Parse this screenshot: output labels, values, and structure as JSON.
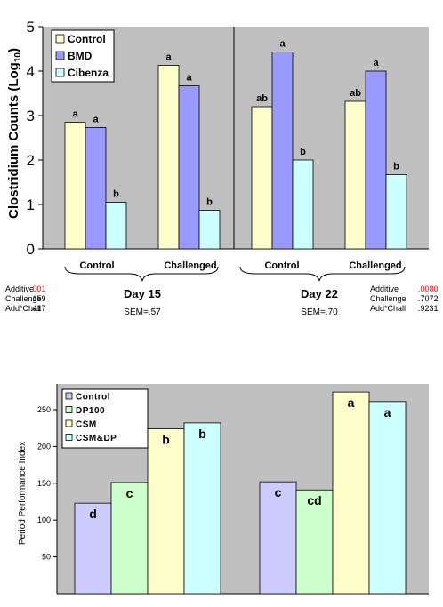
{
  "chart_data": [
    {
      "type": "bar",
      "ylabel": "Clostridium Counts (Log",
      "ylabel_sub": "10",
      "ylabel_close": ")",
      "ylim": [
        0,
        5
      ],
      "yticks": [
        "0",
        "1",
        "2",
        "3",
        "4",
        "5"
      ],
      "grid": false,
      "legend_position": "top-left",
      "categories": [
        "Control",
        "Challenged",
        "Control",
        "Challenged"
      ],
      "groups": [
        {
          "label": "Day 15",
          "sem": "SEM=.57"
        },
        {
          "label": "Day 22",
          "sem": "SEM=.70"
        }
      ],
      "series": [
        {
          "name": "Control",
          "color": "#ffffcc",
          "values": [
            2.85,
            4.13,
            3.2,
            3.32
          ],
          "labels": [
            "a",
            "a",
            "ab",
            "ab"
          ]
        },
        {
          "name": "BMD",
          "color": "#9999ff",
          "values": [
            2.73,
            3.67,
            4.43,
            4.0
          ],
          "labels": [
            "a",
            "a",
            "a",
            "a"
          ]
        },
        {
          "name": "Cibenza",
          "color": "#ccffff",
          "values": [
            1.05,
            0.87,
            2.0,
            1.67
          ],
          "labels": [
            "b",
            "b",
            "b",
            "b"
          ]
        }
      ],
      "stats": [
        {
          "rows": [
            {
              "name": "Additive",
              "value": ".001",
              "highlight": true
            },
            {
              "name": "Challenge",
              "value": ".159",
              "highlight": false
            },
            {
              "name": "Add*Chall",
              "value": ".417",
              "highlight": false
            }
          ]
        },
        {
          "rows": [
            {
              "name": "Additive",
              "value": ".0080",
              "highlight": true
            },
            {
              "name": "Challenge",
              "value": ".7072",
              "highlight": false
            },
            {
              "name": "Add*Chall",
              "value": ".9231",
              "highlight": false
            }
          ]
        }
      ]
    },
    {
      "type": "bar",
      "ylabel": "Period Performance Index",
      "ylim": [
        0,
        285
      ],
      "yticks": [
        "50",
        "100",
        "150",
        "200",
        "250"
      ],
      "ytick_values": [
        50,
        100,
        150,
        200,
        250
      ],
      "grid": false,
      "legend_position": "top-left",
      "series": [
        {
          "name": "Control",
          "color": "#ccccff",
          "values": [
            123,
            152
          ],
          "labels": [
            "d",
            "c"
          ]
        },
        {
          "name": "DP100",
          "color": "#ccffcc",
          "values": [
            151,
            141
          ],
          "labels": [
            "c",
            "cd"
          ]
        },
        {
          "name": "CSM",
          "color": "#ffffcc",
          "values": [
            224,
            274
          ],
          "labels": [
            "b",
            "a"
          ]
        },
        {
          "name": "CSM&DP",
          "color": "#ccffff",
          "values": [
            232,
            261
          ],
          "labels": [
            "b",
            "a"
          ]
        }
      ]
    }
  ],
  "colors": {
    "plot_bg": "#c0c0c0",
    "highlight": "#ff0000"
  }
}
